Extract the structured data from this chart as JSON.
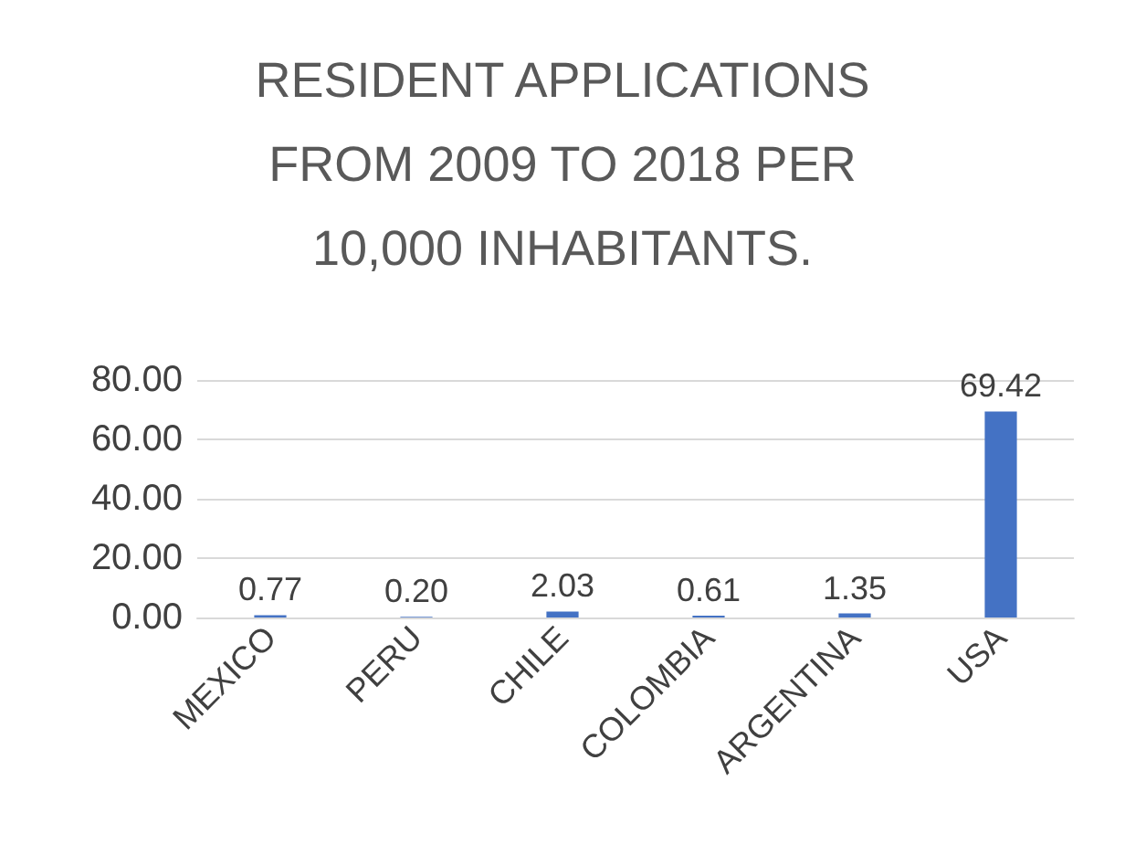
{
  "chart_data": {
    "type": "bar",
    "title": "RESIDENT APPLICATIONS FROM 2009 TO 2018 PER 10,000 INHABITANTS.",
    "categories": [
      "MEXICO",
      "PERU",
      "CHILE",
      "COLOMBIA",
      "ARGENTINA",
      "USA"
    ],
    "values": [
      0.77,
      0.2,
      2.03,
      0.61,
      1.35,
      69.42
    ],
    "value_labels": [
      "0.77",
      "0.20",
      "2.03",
      "0.61",
      "1.35",
      "69.42"
    ],
    "color": "#4472c4",
    "ylim": [
      0,
      80
    ],
    "yticks": [
      {
        "value": 0,
        "label": "0.00"
      },
      {
        "value": 20,
        "label": "20.00"
      },
      {
        "value": 40,
        "label": "40.00"
      },
      {
        "value": 60,
        "label": "60.00"
      },
      {
        "value": 80,
        "label": "80.00"
      }
    ],
    "grid": "y"
  }
}
